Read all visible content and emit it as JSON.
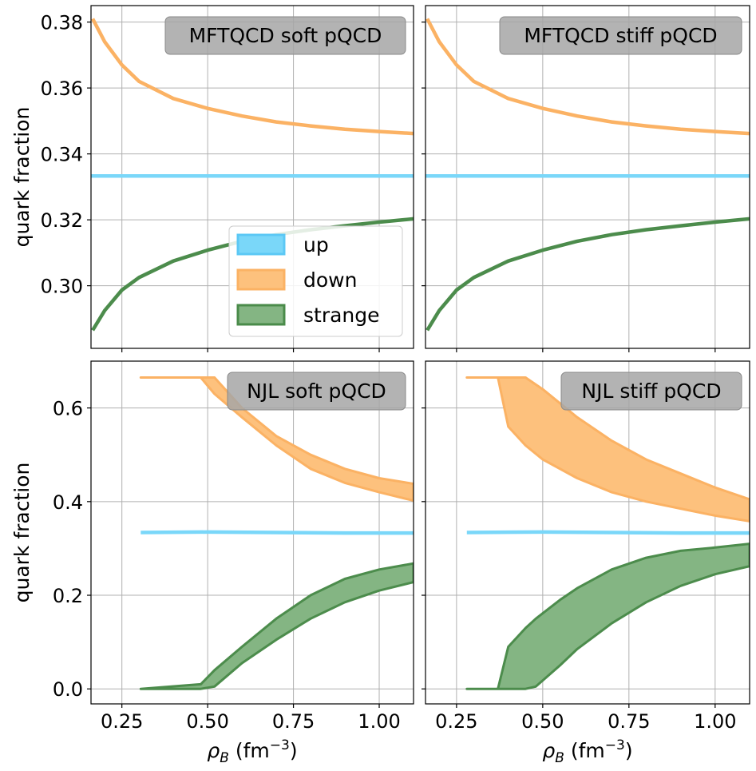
{
  "chart_data": [
    {
      "type": "line",
      "panel": "MFTQCD soft pQCD",
      "title": "MFTQCD soft pQCD",
      "xlabel_main": "ρ",
      "xlabel_sub": "B",
      "xlabel_unit": " (fm",
      "xlabel_exp": "−3",
      "xlabel_close": ")",
      "ylabel": "quark fraction",
      "xlim": [
        0.16,
        1.1
      ],
      "ylim": [
        0.281,
        0.385
      ],
      "xticks": [
        0.25,
        0.5,
        0.75,
        1.0
      ],
      "xtick_labels": [
        "0.25",
        "0.50",
        "0.75",
        "1.00"
      ],
      "yticks": [
        0.3,
        0.32,
        0.34,
        0.36,
        0.38
      ],
      "ytick_labels": [
        "0.30",
        "0.32",
        "0.34",
        "0.36",
        "0.38"
      ],
      "series": [
        {
          "name": "up",
          "x": [
            0.16,
            1.1
          ],
          "lower": [
            0.3333,
            0.3333
          ],
          "upper": [
            0.3333,
            0.3333
          ]
        },
        {
          "name": "down",
          "x": [
            0.165,
            0.2,
            0.25,
            0.3,
            0.4,
            0.5,
            0.6,
            0.7,
            0.8,
            0.9,
            1.0,
            1.1
          ],
          "lower": [
            0.381,
            0.374,
            0.367,
            0.362,
            0.3568,
            0.3538,
            0.3515,
            0.3497,
            0.3485,
            0.3475,
            0.3468,
            0.3462
          ],
          "upper": [
            0.381,
            0.374,
            0.367,
            0.362,
            0.3568,
            0.3538,
            0.3515,
            0.3497,
            0.3485,
            0.3475,
            0.3468,
            0.3462
          ]
        },
        {
          "name": "strange",
          "x": [
            0.165,
            0.2,
            0.25,
            0.3,
            0.4,
            0.5,
            0.6,
            0.7,
            0.8,
            0.9,
            1.0,
            1.1
          ],
          "lower": [
            0.2865,
            0.2925,
            0.2987,
            0.3025,
            0.3075,
            0.3108,
            0.3135,
            0.3155,
            0.317,
            0.3182,
            0.3193,
            0.3203
          ],
          "upper": [
            0.2865,
            0.2925,
            0.2987,
            0.3025,
            0.3075,
            0.3108,
            0.3135,
            0.3155,
            0.317,
            0.3182,
            0.3193,
            0.3203
          ]
        }
      ],
      "legend": [
        "up",
        "down",
        "strange"
      ],
      "legend_position": "lower-right",
      "grid": true
    },
    {
      "type": "line",
      "panel": "MFTQCD stiff pQCD",
      "title": "MFTQCD stiff pQCD",
      "xlabel_main": "ρ",
      "xlabel_sub": "B",
      "xlabel_unit": " (fm",
      "xlabel_exp": "−3",
      "xlabel_close": ")",
      "ylabel": "",
      "xlim": [
        0.16,
        1.1
      ],
      "ylim": [
        0.281,
        0.385
      ],
      "xticks": [
        0.25,
        0.5,
        0.75,
        1.0
      ],
      "xtick_labels": [
        "0.25",
        "0.50",
        "0.75",
        "1.00"
      ],
      "yticks": [
        0.3,
        0.32,
        0.34,
        0.36,
        0.38
      ],
      "ytick_labels": [],
      "series": [
        {
          "name": "up",
          "x": [
            0.16,
            1.1
          ],
          "lower": [
            0.3333,
            0.3333
          ],
          "upper": [
            0.3333,
            0.3333
          ]
        },
        {
          "name": "down",
          "x": [
            0.165,
            0.2,
            0.25,
            0.3,
            0.4,
            0.5,
            0.6,
            0.7,
            0.8,
            0.9,
            1.0,
            1.1
          ],
          "lower": [
            0.381,
            0.374,
            0.367,
            0.362,
            0.3568,
            0.3538,
            0.3515,
            0.3497,
            0.3485,
            0.3475,
            0.3468,
            0.3462
          ],
          "upper": [
            0.381,
            0.374,
            0.367,
            0.362,
            0.3568,
            0.3538,
            0.3515,
            0.3497,
            0.3485,
            0.3475,
            0.3468,
            0.3462
          ]
        },
        {
          "name": "strange",
          "x": [
            0.165,
            0.2,
            0.25,
            0.3,
            0.4,
            0.5,
            0.6,
            0.7,
            0.8,
            0.9,
            1.0,
            1.1
          ],
          "lower": [
            0.2865,
            0.2925,
            0.2987,
            0.3025,
            0.3075,
            0.3108,
            0.3135,
            0.3155,
            0.317,
            0.3182,
            0.3193,
            0.3203
          ],
          "upper": [
            0.2865,
            0.2925,
            0.2987,
            0.3025,
            0.3075,
            0.3108,
            0.3135,
            0.3155,
            0.317,
            0.3182,
            0.3193,
            0.3203
          ]
        }
      ],
      "legend": [],
      "grid": true
    },
    {
      "type": "area",
      "panel": "NJL soft pQCD",
      "title": "NJL soft pQCD",
      "xlabel_main": "ρ",
      "xlabel_sub": "B",
      "xlabel_unit": " (fm",
      "xlabel_exp": "−3",
      "xlabel_close": ")",
      "ylabel": "quark fraction",
      "xlim": [
        0.16,
        1.1
      ],
      "ylim": [
        -0.032,
        0.7
      ],
      "xticks": [
        0.25,
        0.5,
        0.75,
        1.0
      ],
      "xtick_labels": [
        "0.25",
        "0.50",
        "0.75",
        "1.00"
      ],
      "yticks": [
        0.0,
        0.2,
        0.4,
        0.6
      ],
      "ytick_labels": [
        "0.0",
        "0.2",
        "0.4",
        "0.6"
      ],
      "series": [
        {
          "name": "up",
          "x": [
            0.305,
            0.5,
            0.7,
            0.9,
            1.1
          ],
          "lower": [
            0.334,
            0.335,
            0.334,
            0.333,
            0.333
          ],
          "upper": [
            0.334,
            0.335,
            0.334,
            0.333,
            0.333
          ]
        },
        {
          "name": "down",
          "x": [
            0.305,
            0.48,
            0.52,
            0.6,
            0.7,
            0.8,
            0.9,
            1.0,
            1.1
          ],
          "lower": [
            0.665,
            0.665,
            0.63,
            0.58,
            0.52,
            0.47,
            0.44,
            0.42,
            0.402
          ],
          "upper": [
            0.665,
            0.665,
            0.665,
            0.6,
            0.54,
            0.5,
            0.47,
            0.45,
            0.438
          ]
        },
        {
          "name": "strange",
          "x": [
            0.305,
            0.48,
            0.52,
            0.6,
            0.7,
            0.8,
            0.9,
            1.0,
            1.1
          ],
          "lower": [
            0.0,
            0.0,
            0.005,
            0.055,
            0.105,
            0.15,
            0.185,
            0.21,
            0.228
          ],
          "upper": [
            0.0,
            0.01,
            0.04,
            0.09,
            0.15,
            0.2,
            0.235,
            0.255,
            0.268
          ]
        }
      ],
      "legend": [],
      "grid": true
    },
    {
      "type": "area",
      "panel": "NJL stiff pQCD",
      "title": "NJL stiff pQCD",
      "xlabel_main": "ρ",
      "xlabel_sub": "B",
      "xlabel_unit": " (fm",
      "xlabel_exp": "−3",
      "xlabel_close": ")",
      "ylabel": "",
      "xlim": [
        0.16,
        1.1
      ],
      "ylim": [
        -0.032,
        0.7
      ],
      "xticks": [
        0.25,
        0.5,
        0.75,
        1.0
      ],
      "xtick_labels": [
        "0.25",
        "0.50",
        "0.75",
        "1.00"
      ],
      "yticks": [
        0.0,
        0.2,
        0.4,
        0.6
      ],
      "ytick_labels": [],
      "series": [
        {
          "name": "up",
          "x": [
            0.28,
            0.5,
            0.7,
            0.9,
            1.1
          ],
          "lower": [
            0.334,
            0.335,
            0.334,
            0.333,
            0.333
          ],
          "upper": [
            0.334,
            0.335,
            0.334,
            0.333,
            0.333
          ]
        },
        {
          "name": "down",
          "x": [
            0.28,
            0.37,
            0.4,
            0.45,
            0.5,
            0.6,
            0.7,
            0.8,
            0.9,
            1.0,
            1.1
          ],
          "lower": [
            0.665,
            0.665,
            0.56,
            0.52,
            0.49,
            0.45,
            0.42,
            0.4,
            0.385,
            0.37,
            0.358
          ],
          "upper": [
            0.665,
            0.665,
            0.665,
            0.665,
            0.64,
            0.58,
            0.53,
            0.49,
            0.46,
            0.43,
            0.405
          ]
        },
        {
          "name": "strange",
          "x": [
            0.28,
            0.37,
            0.4,
            0.45,
            0.48,
            0.55,
            0.6,
            0.7,
            0.8,
            0.9,
            1.0,
            1.1
          ],
          "lower": [
            0.0,
            0.0,
            0.0,
            0.0,
            0.005,
            0.05,
            0.085,
            0.14,
            0.185,
            0.22,
            0.245,
            0.262
          ],
          "upper": [
            0.0,
            0.0,
            0.09,
            0.13,
            0.15,
            0.19,
            0.215,
            0.255,
            0.28,
            0.295,
            0.302,
            0.31
          ]
        }
      ],
      "legend": [],
      "grid": true
    }
  ],
  "legend": {
    "items": [
      {
        "label": "up",
        "fill": "#7ad7f9",
        "stroke": "#5cc8f5"
      },
      {
        "label": "down",
        "fill": "#fdc17d",
        "stroke": "#fbb264"
      },
      {
        "label": "strange",
        "fill": "#84b583",
        "stroke": "#4a8b4a"
      }
    ]
  },
  "colors": {
    "up_fill": "#7ad7f9",
    "up_line": "#7ad7f9",
    "down_fill": "#fdc17d",
    "down_line": "#fbb264",
    "strange_fill": "#84b583",
    "strange_line": "#4c8c4c",
    "grid": "#b0b0b0",
    "title_box": "#a6a6a6"
  }
}
